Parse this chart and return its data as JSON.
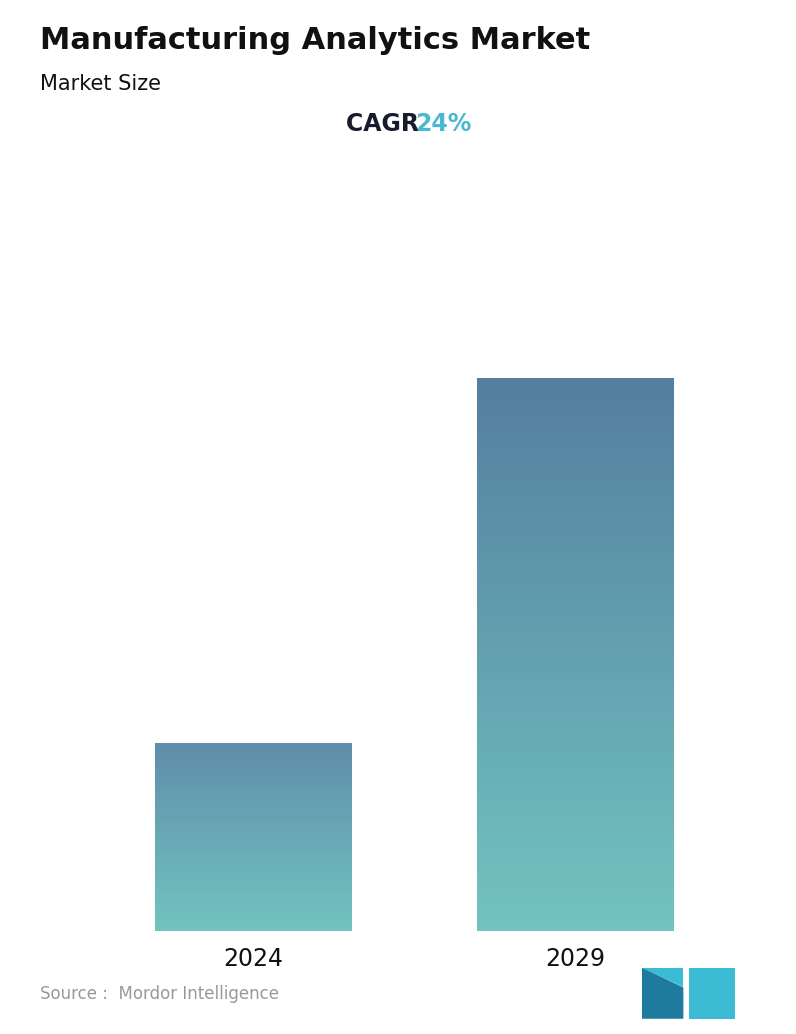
{
  "title": "Manufacturing Analytics Market",
  "subtitle": "Market Size",
  "cagr_label": "CAGR",
  "cagr_value": "24%",
  "cagr_color": "#4ab8d0",
  "cagr_label_color": "#1a1a2e",
  "categories": [
    "2024",
    "2029"
  ],
  "values": [
    1.0,
    2.95
  ],
  "bar_top_color": [
    "#5f8eaa",
    "#547fa0"
  ],
  "bar_bottom_color": [
    "#72c4c0",
    "#72c4c0"
  ],
  "background_color": "#ffffff",
  "title_color": "#111111",
  "subtitle_color": "#111111",
  "tick_label_color": "#111111",
  "source_text": "Source :  Mordor Intelligence",
  "source_color": "#999999",
  "title_fontsize": 22,
  "subtitle_fontsize": 15,
  "tick_fontsize": 17,
  "cagr_fontsize": 17,
  "source_fontsize": 12,
  "bar_width": 0.28,
  "x_positions": [
    0.27,
    0.73
  ],
  "xlim": [
    0.0,
    1.0
  ],
  "ylim": [
    0.0,
    3.2
  ],
  "figsize": [
    7.96,
    10.34
  ],
  "dpi": 100
}
